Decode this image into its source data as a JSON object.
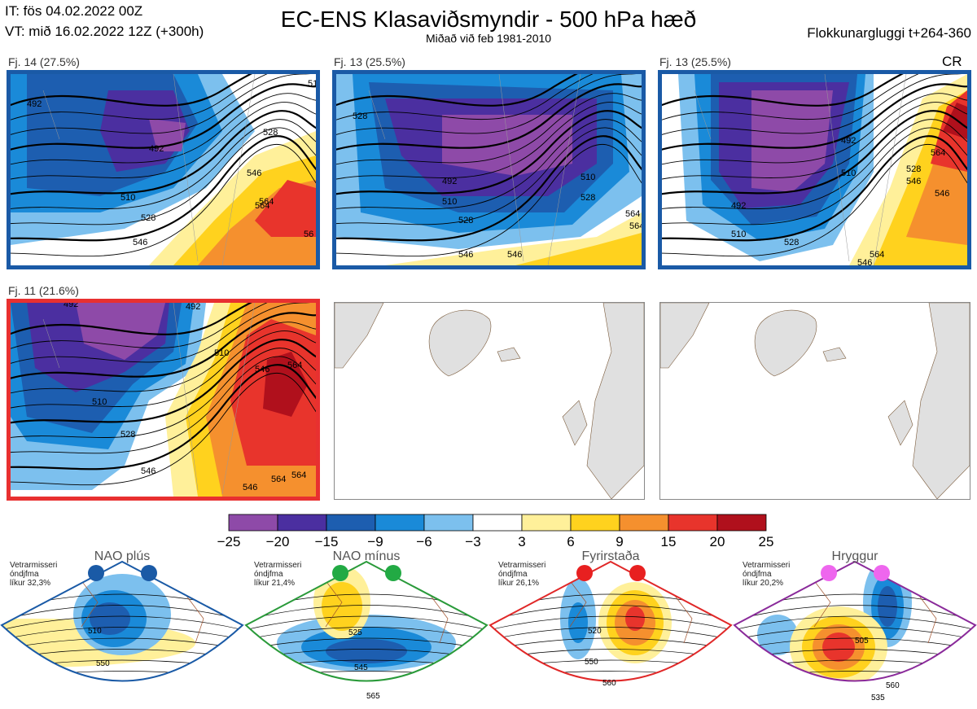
{
  "header": {
    "it_line": "IT: fös 04.02.2022 00Z",
    "vt_line": "VT: mið 16.02.2022 12Z  (+300h)",
    "title": "EC-ENS Klasaviðsmyndir - 500 hPa hæð",
    "subtitle": "Miðað við feb 1981-2010",
    "window": "Flokkunargluggi t+264-360",
    "cr": "CR"
  },
  "clusters": [
    {
      "caption": "Fj. 14 (27.5%)",
      "border": "#1a5aa6",
      "labels": [
        "492",
        "510",
        "528",
        "546",
        "564",
        "56",
        "510",
        "528",
        "546",
        "564",
        "492"
      ]
    },
    {
      "caption": "Fj. 13 (25.5%)",
      "border": "#1a5aa6",
      "labels": [
        "492",
        "510",
        "528",
        "546",
        "564",
        "546",
        "528",
        "510",
        "528",
        "564",
        "564"
      ]
    },
    {
      "caption": "Fj. 13 (25.5%)",
      "border": "#1a5aa6",
      "labels": [
        "492",
        "510",
        "528",
        "546",
        "564",
        "492",
        "510",
        "528",
        "546",
        "564",
        "546"
      ]
    },
    {
      "caption": "Fj. 11 (21.6%)",
      "border": "#e83030",
      "labels": [
        "492",
        "510",
        "528",
        "546",
        "564",
        "546",
        "564",
        "546",
        "564",
        "492",
        "510"
      ]
    }
  ],
  "colorbar": {
    "ticks": [
      "−25",
      "−20",
      "−15",
      "−9",
      "−6",
      "−3",
      "3",
      "6",
      "9",
      "15",
      "20",
      "25"
    ],
    "colors": [
      "#8e4aa8",
      "#4b2fa0",
      "#1d5eb0",
      "#1a8ad8",
      "#7cc0ee",
      "#ffffff",
      "#fff09a",
      "#ffd21e",
      "#f5902e",
      "#e8342c",
      "#b0101c"
    ]
  },
  "regimes": [
    {
      "title": "NAO plús",
      "note": "Vetrarmisseri\nóndjfma\nlíkur 32,3%",
      "color": "#1a5aa6",
      "dot": "#1a5aa6",
      "labels": [
        "510",
        "550"
      ]
    },
    {
      "title": "NAO mínus",
      "note": "Vetrarmisseri\nóndjfma\nlíkur 21,4%",
      "color": "#2a9a3a",
      "dot": "#22aa44",
      "labels": [
        "525",
        "545",
        "565"
      ]
    },
    {
      "title": "Fyrirstaða",
      "note": "Vetrarmisseri\nóndjfma\nlíkur 26,1%",
      "color": "#e02828",
      "dot": "#e82020",
      "labels": [
        "520",
        "550",
        "560"
      ]
    },
    {
      "title": "Hryggur",
      "note": "Vetrarmisseri\nóndjfma\nlíkur 20,2%",
      "color": "#8a2a9a",
      "dot": "#ee66ee",
      "labels": [
        "505",
        "535",
        "560"
      ]
    }
  ]
}
